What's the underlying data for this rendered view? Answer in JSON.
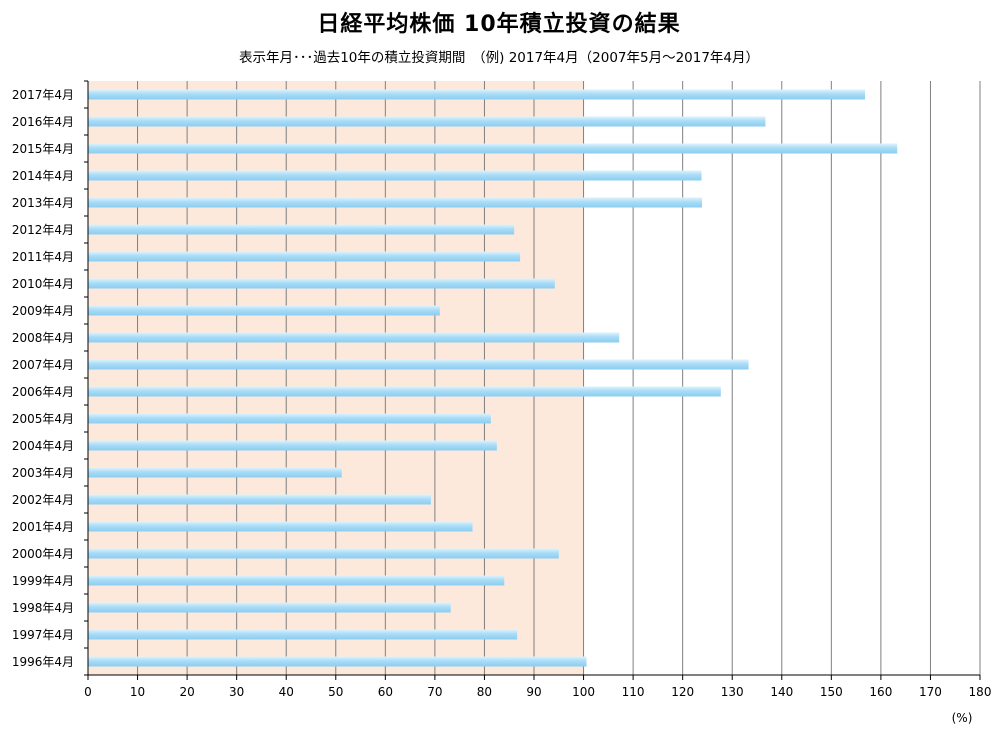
{
  "chart_data": {
    "type": "bar",
    "orientation": "horizontal",
    "title": "日経平均株価 10年積立投資の結果",
    "subtitle": "表示年月･･･過去10年の積立投資期間　（例) 2017年4月（2007年5月～2017年4月）",
    "xlabel": "(%)",
    "xlim": [
      0,
      180
    ],
    "xticks": [
      0,
      10,
      20,
      30,
      40,
      50,
      60,
      70,
      80,
      90,
      100,
      110,
      120,
      130,
      140,
      150,
      160,
      170,
      180
    ],
    "grid": "vertical",
    "shaded_region": [
      0,
      100
    ],
    "categories": [
      "2017年4月",
      "2016年4月",
      "2015年4月",
      "2014年4月",
      "2013年4月",
      "2012年4月",
      "2011年4月",
      "2010年4月",
      "2009年4月",
      "2008年4月",
      "2007年4月",
      "2006年4月",
      "2005年4月",
      "2004年4月",
      "2003年4月",
      "2002年4月",
      "2001年4月",
      "2000年4月",
      "1999年4月",
      "1998年4月",
      "1997年4月",
      "1996年4月"
    ],
    "values": [
      156.8,
      136.7,
      163.3,
      123.8,
      123.9,
      86.0,
      87.2,
      94.2,
      71.0,
      107.2,
      133.3,
      127.7,
      81.3,
      82.5,
      51.2,
      69.2,
      77.6,
      95.0,
      84.0,
      73.2,
      86.6,
      100.6
    ]
  },
  "colors": {
    "bar_light": "#def3fd",
    "bar_mid": "#a9dcf7",
    "bar_dark": "#8ccdf1",
    "shade": "#fde9dc",
    "grid": "#7f7f7f",
    "axis": "#000000"
  }
}
